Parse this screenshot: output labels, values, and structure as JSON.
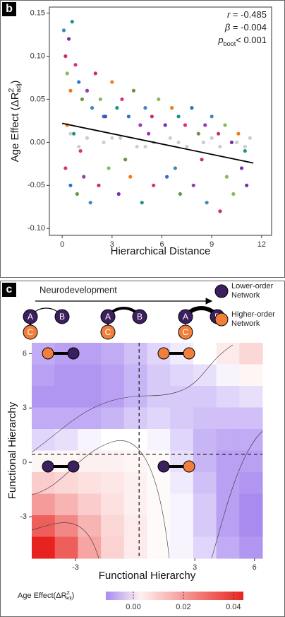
{
  "chart_data": [
    {
      "type": "scatter",
      "panel_label": "b",
      "x_label": "Hierarchical Distance",
      "y_label": {
        "text": "Age Effect (ΔR",
        "sup": "2",
        "sub": "adj",
        "end": ")"
      },
      "annotations": [
        {
          "symbol": "r",
          "text": " = -0.485"
        },
        {
          "symbol": "β",
          "text": " = -0.004"
        },
        {
          "symbol": "p",
          "sub": "boot",
          "text": "< 0.001"
        }
      ],
      "xlim": [
        -0.77,
        12.6
      ],
      "ylim": [
        -0.108,
        0.157
      ],
      "xticks": [
        0,
        3,
        6,
        9,
        12
      ],
      "yticks": [
        {
          "value": 0.15,
          "label": "0.15"
        },
        {
          "value": 0.1,
          "label": "0.10"
        },
        0.05,
        {
          "value": 0,
          "label": "0.00"
        },
        -0.05,
        {
          "value": -0.1,
          "label": "-0.10"
        }
      ],
      "series": [
        {
          "palette": [
            "#2a7ab0",
            "#c2185b",
            "#7cb342",
            "#6a1b9a",
            "#ef6c00",
            "#00897b",
            "#d81b60",
            "#1565c0",
            "#558b2f",
            "#8e24aa"
          ],
          "x": [
            0.1,
            0.2,
            0.3,
            0.4,
            0.5,
            0.6,
            0.8,
            1.0,
            1.2,
            1.5,
            1.8,
            2.0,
            2.3,
            2.6,
            3.0,
            3.3,
            3.6,
            4.0,
            4.3,
            4.7,
            5.0,
            5.4,
            5.8,
            6.2,
            6.6,
            7.0,
            7.4,
            7.8,
            8.2,
            8.6,
            9.0,
            9.4,
            9.8,
            10.2,
            10.6,
            11.0,
            0.2,
            0.5,
            0.9,
            1.3,
            1.7,
            2.2,
            2.8,
            3.4,
            4.1,
            4.8,
            5.5,
            6.3,
            7.1,
            7.9,
            8.7,
            9.5,
            10.3,
            11.1,
            0.3,
            0.7,
            1.1,
            2.5,
            3.8,
            5.2,
            6.8,
            8.4,
            9.9,
            10.8
          ],
          "values": [
            0.13,
            0.1,
            0.08,
            0.12,
            0.06,
            0.14,
            0.09,
            0.07,
            0.05,
            0.06,
            0.04,
            0.08,
            0.05,
            0.03,
            0.07,
            0.04,
            0.05,
            0.03,
            0.06,
            0.02,
            0.04,
            0.03,
            0.05,
            0.02,
            0.04,
            0.03,
            0.02,
            0.04,
            0.01,
            0.02,
            0.03,
            0.01,
            0.02,
            0.0,
            0.01,
            -0.01,
            -0.03,
            -0.05,
            -0.06,
            -0.04,
            -0.07,
            -0.05,
            -0.03,
            -0.06,
            -0.04,
            -0.07,
            -0.05,
            -0.04,
            -0.06,
            -0.05,
            -0.07,
            -0.08,
            -0.06,
            -0.05,
            0.02,
            0.01,
            -0.01,
            0.03,
            -0.02,
            0.01,
            -0.03,
            -0.02,
            -0.04,
            -0.03
          ]
        },
        {
          "color": "#c8c8c8",
          "x": [
            0.5,
            1.5,
            2.5,
            3.5,
            4.5,
            5.5,
            6.5,
            7.5,
            8.5,
            9.5,
            10.5,
            11.3,
            1,
            3,
            5,
            7,
            9,
            11
          ],
          "values": [
            0.01,
            0.005,
            0.0,
            0.005,
            -0.005,
            0.0,
            0.005,
            -0.005,
            0.0,
            -0.005,
            0.0,
            0.005,
            -0.005,
            0.005,
            -0.005,
            0.0,
            0.005,
            -0.005
          ]
        }
      ],
      "fit": {
        "color": "#000000",
        "x": [
          0,
          11.5
        ],
        "values": [
          0.022,
          -0.024
        ]
      }
    },
    {
      "type": "heatmap",
      "panel_label": "c",
      "x_label": "Functional Hierarchy",
      "y_label": "Functional Hierarchy",
      "xlim": [
        -5.2,
        6.4
      ],
      "ylim": [
        -5.3,
        6.6
      ],
      "xticks": [
        -3,
        3,
        6
      ],
      "yticks": [
        6,
        3,
        0,
        -3
      ],
      "vline": 0.2,
      "hline": 0.45,
      "z": [
        [
          -0.008,
          -0.009,
          -0.009,
          -0.008,
          -0.006,
          -0.004,
          -0.002,
          0.0,
          0.004,
          0.008
        ],
        [
          -0.009,
          -0.01,
          -0.01,
          -0.009,
          -0.007,
          -0.005,
          -0.004,
          -0.003,
          -0.001,
          0.002
        ],
        [
          -0.01,
          -0.01,
          -0.01,
          -0.009,
          -0.007,
          -0.005,
          -0.005,
          -0.005,
          -0.004,
          -0.003
        ],
        [
          -0.008,
          -0.008,
          -0.008,
          -0.007,
          -0.005,
          -0.004,
          -0.005,
          -0.006,
          -0.006,
          -0.006
        ],
        [
          -0.004,
          -0.003,
          -0.001,
          0.0,
          0.0,
          -0.001,
          -0.004,
          -0.007,
          -0.008,
          -0.008
        ],
        [
          0.002,
          0.002,
          0.003,
          0.003,
          0.002,
          0.001,
          -0.003,
          -0.007,
          -0.009,
          -0.009
        ],
        [
          0.01,
          0.008,
          0.006,
          0.005,
          0.003,
          0.001,
          -0.002,
          -0.006,
          -0.009,
          -0.01
        ],
        [
          0.02,
          0.015,
          0.01,
          0.006,
          0.003,
          0.001,
          -0.001,
          -0.005,
          -0.009,
          -0.011
        ],
        [
          0.032,
          0.024,
          0.015,
          0.008,
          0.004,
          0.001,
          -0.001,
          -0.005,
          -0.009,
          -0.011
        ],
        [
          0.044,
          0.032,
          0.018,
          0.009,
          0.004,
          0.001,
          -0.001,
          -0.004,
          -0.008,
          -0.01
        ]
      ],
      "clim": [
        -0.011,
        0.044
      ],
      "low_color": "#a98bf0",
      "mid_color": "#ffffff",
      "high_color": "#e8231f",
      "colorbar_label": {
        "text": "Age Effect(ΔR",
        "sup": "2",
        "sub": "adj",
        "end": ")"
      },
      "colorbar_ticks": [
        {
          "value": 0,
          "label": "0.00"
        },
        0.02,
        0.04
      ]
    }
  ],
  "diagram": {
    "title": "Neurodevelopment",
    "nodes": [
      "A",
      "B",
      "C"
    ]
  },
  "legend": [
    {
      "lines": [
        "Lower-order",
        "Network"
      ],
      "color": "#3b1f5e"
    },
    {
      "lines": [
        "Higher-order",
        "Network"
      ],
      "color": "#f07f3c"
    }
  ]
}
